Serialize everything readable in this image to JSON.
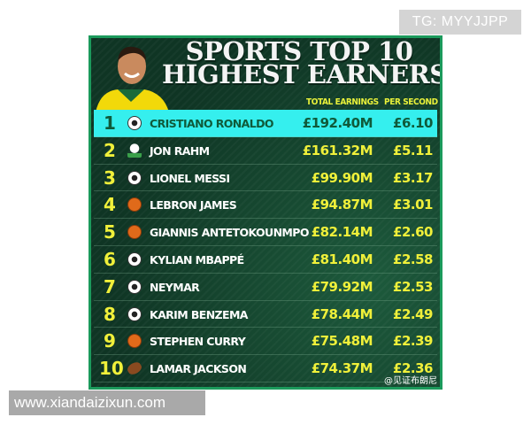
{
  "watermark_top": "TG: MYYJJPP",
  "watermark_bottom": "www.xiandaizixun.com",
  "title_line1": "SPORTS TOP 10",
  "title_line2": "HIGHEST EARNERS",
  "col_total": "TOTAL EARNINGS",
  "col_per_second": "PER SECOND",
  "credit": "@见证布朗尼",
  "colors": {
    "highlight": "#35efee",
    "value": "#f0f03a",
    "background": "#0f3524",
    "border": "#1c9a5c"
  },
  "rows": [
    {
      "rank": "1",
      "sport_icon": "soccer-ball-icon",
      "name": "CRISTIANO RONALDO",
      "total": "£192.40M",
      "per_second": "£6.10"
    },
    {
      "rank": "2",
      "sport_icon": "golf-ball-icon",
      "name": "JON RAHM",
      "total": "£161.32M",
      "per_second": "£5.11"
    },
    {
      "rank": "3",
      "sport_icon": "soccer-ball-icon",
      "name": "LIONEL MESSI",
      "total": "£99.90M",
      "per_second": "£3.17"
    },
    {
      "rank": "4",
      "sport_icon": "basketball-icon",
      "name": "LEBRON JAMES",
      "total": "£94.87M",
      "per_second": "£3.01"
    },
    {
      "rank": "5",
      "sport_icon": "basketball-icon",
      "name": "GIANNIS ANTETOKOUNMPO",
      "total": "£82.14M",
      "per_second": "£2.60"
    },
    {
      "rank": "6",
      "sport_icon": "soccer-ball-icon",
      "name": "KYLIAN MBAPPÉ",
      "total": "£81.40M",
      "per_second": "£2.58"
    },
    {
      "rank": "7",
      "sport_icon": "soccer-ball-icon",
      "name": "NEYMAR",
      "total": "£79.92M",
      "per_second": "£2.53"
    },
    {
      "rank": "8",
      "sport_icon": "soccer-ball-icon",
      "name": "KARIM BENZEMA",
      "total": "£78.44M",
      "per_second": "£2.49"
    },
    {
      "rank": "9",
      "sport_icon": "basketball-icon",
      "name": "STEPHEN CURRY",
      "total": "£75.48M",
      "per_second": "£2.39"
    },
    {
      "rank": "10",
      "sport_icon": "american-football-icon",
      "name": "LAMAR JACKSON",
      "total": "£74.37M",
      "per_second": "£2.36"
    }
  ]
}
